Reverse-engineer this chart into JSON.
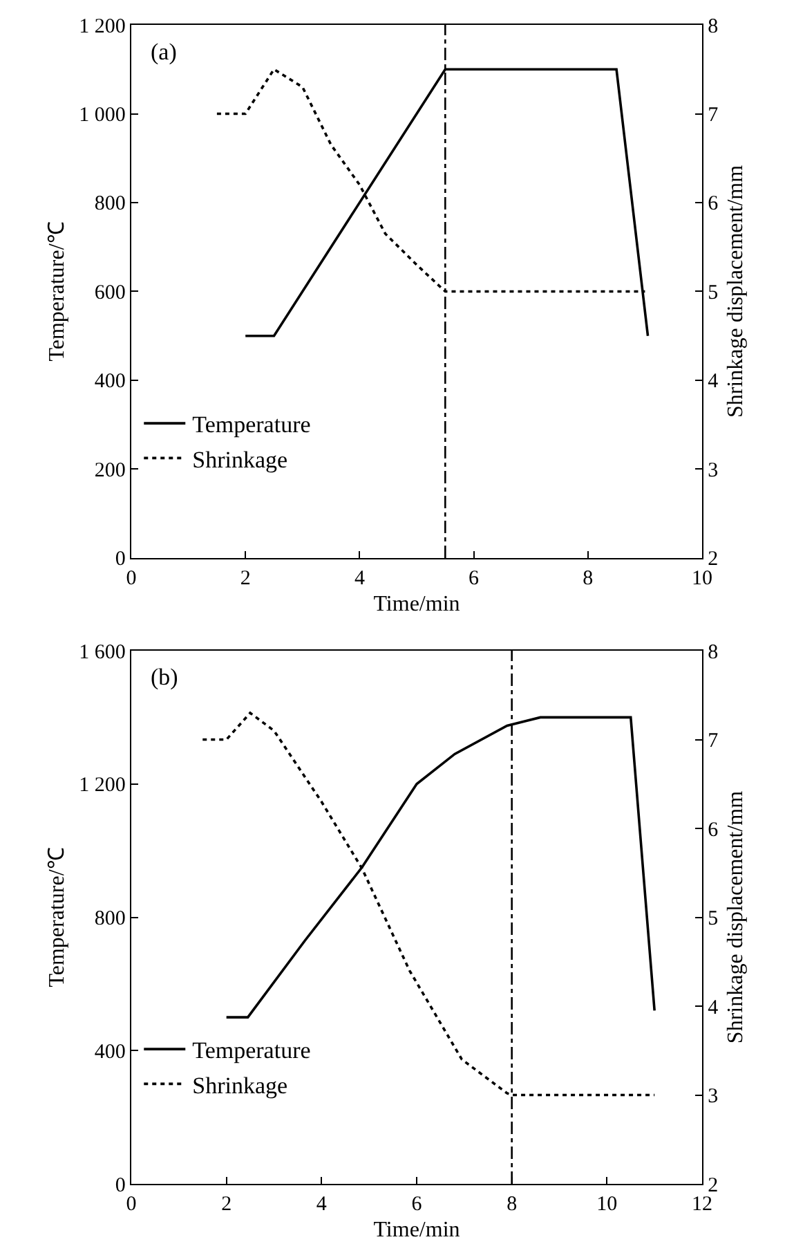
{
  "chart_data": [
    {
      "type": "line",
      "xlabel": "Time/min",
      "ylabel": "Temperature/℃",
      "y2label": "Shrinkage displacement/mm",
      "annotations": [
        "(a)"
      ],
      "xlim": [
        0,
        10
      ],
      "xticks": [
        0,
        2,
        4,
        6,
        8,
        10
      ],
      "ylim": [
        0,
        1200
      ],
      "yticks": [
        0,
        200,
        400,
        600,
        800,
        {
          "value": 1000,
          "label": "1 000"
        },
        {
          "value": 1200,
          "label": "1 200"
        }
      ],
      "y2lim": [
        2,
        8
      ],
      "y2ticks": [
        2,
        3,
        4,
        5,
        6,
        7,
        8
      ],
      "legend": "bottom left",
      "marker": "none",
      "ref_lines": [
        {
          "axis": "x",
          "value": 5.5,
          "color": "#000000",
          "line_style": "dashed"
        }
      ],
      "series": [
        {
          "name": "Temperature",
          "color": "#000000",
          "line_style": "solid",
          "x": [
            2,
            2.5,
            5.5,
            8.5,
            9.05
          ],
          "values": [
            500,
            500,
            1100,
            1100,
            500
          ]
        },
        {
          "name": "Shrinkage",
          "color": "#000000",
          "line_style": "dotted",
          "axis": "y2",
          "x": [
            1.5,
            2,
            2.5,
            3,
            3.5,
            4,
            4.45,
            5,
            5.5,
            9
          ],
          "values": [
            7,
            7,
            7.5,
            7.3,
            6.65,
            6.2,
            5.65,
            5.3,
            5,
            5
          ]
        }
      ]
    },
    {
      "type": "line",
      "xlabel": "Time/min",
      "ylabel": "Temperature/℃",
      "y2label": "Shrinkage displacement/mm",
      "annotations": [
        "(b)"
      ],
      "xlim": [
        0,
        12
      ],
      "xticks": [
        0,
        2,
        4,
        6,
        8,
        10,
        12
      ],
      "ylim": [
        0,
        1600
      ],
      "yticks": [
        0,
        400,
        800,
        {
          "value": 1200,
          "label": "1 200"
        },
        {
          "value": 1600,
          "label": "1 600"
        }
      ],
      "y2lim": [
        2,
        8
      ],
      "y2ticks": [
        2,
        3,
        4,
        5,
        6,
        7,
        8
      ],
      "legend": "bottom left",
      "marker": "none",
      "ref_lines": [
        {
          "axis": "x",
          "value": 8,
          "color": "#000000",
          "line_style": "dashed"
        }
      ],
      "series": [
        {
          "name": "Temperature",
          "color": "#000000",
          "line_style": "solid",
          "x": [
            2,
            2.45,
            3.65,
            4.85,
            6,
            6.8,
            7.9,
            8.6,
            10.5,
            11
          ],
          "values": [
            500,
            500,
            730,
            950,
            1200,
            1290,
            1375,
            1400,
            1400,
            520
          ]
        },
        {
          "name": "Shrinkage",
          "color": "#000000",
          "line_style": "dotted",
          "axis": "y2",
          "x": [
            1.5,
            2,
            2.5,
            3,
            4,
            4.85,
            5.85,
            6.95,
            7.9,
            8,
            11
          ],
          "values": [
            7,
            7,
            7.3,
            7.1,
            6.3,
            5.55,
            4.4,
            3.4,
            3.02,
            3,
            3
          ]
        }
      ]
    }
  ]
}
